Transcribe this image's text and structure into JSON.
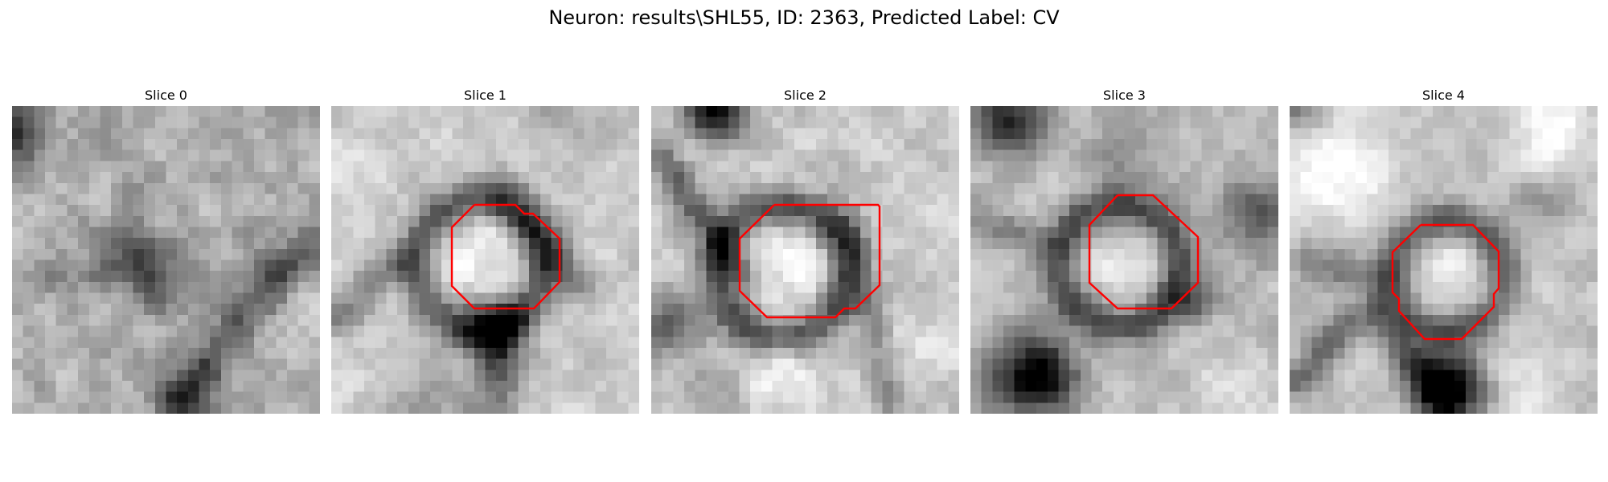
{
  "figure": {
    "title": "Neuron: results\\SHL55, ID: 2363, Predicted Label: CV"
  },
  "slices": [
    {
      "title": "Slice 0",
      "has_contour": false
    },
    {
      "title": "Slice 1",
      "has_contour": true
    },
    {
      "title": "Slice 2",
      "has_contour": true
    },
    {
      "title": "Slice 3",
      "has_contour": true
    },
    {
      "title": "Slice 4",
      "has_contour": true
    }
  ],
  "colors": {
    "contour": "#ff0000",
    "colormap": "gray"
  }
}
